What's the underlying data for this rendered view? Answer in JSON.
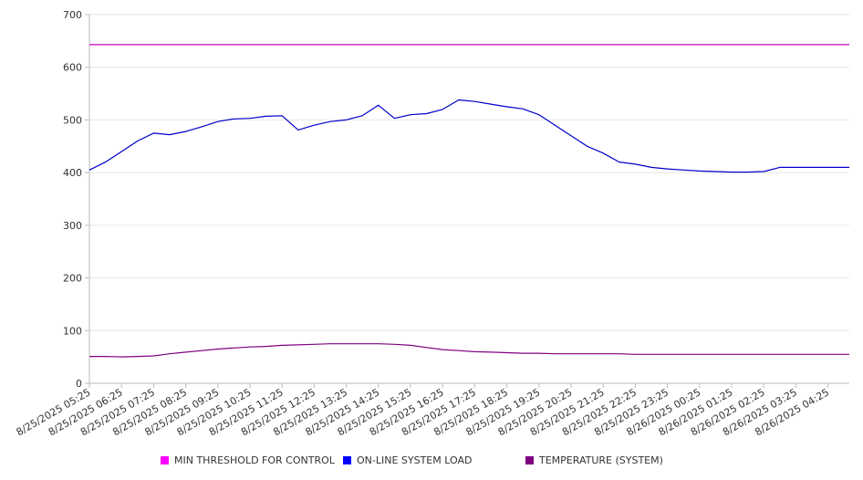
{
  "chart_data": {
    "type": "line",
    "title": "",
    "xlabel": "",
    "ylabel": "",
    "ylim": [
      0,
      700
    ],
    "yticks": [
      0,
      100,
      200,
      300,
      400,
      500,
      600,
      700
    ],
    "xticks": [
      "8/25/2025 05:25",
      "8/25/2025 06:25",
      "8/25/2025 07:25",
      "8/25/2025 08:25",
      "8/25/2025 09:25",
      "8/25/2025 10:25",
      "8/25/2025 11:25",
      "8/25/2025 12:25",
      "8/25/2025 13:25",
      "8/25/2025 14:25",
      "8/25/2025 15:25",
      "8/25/2025 16:25",
      "8/25/2025 17:25",
      "8/25/2025 18:25",
      "8/25/2025 19:25",
      "8/25/2025 20:25",
      "8/25/2025 21:25",
      "8/25/2025 22:25",
      "8/25/2025 23:25",
      "8/26/2025 00:25",
      "8/26/2025 01:25",
      "8/26/2025 02:25",
      "8/26/2025 03:25",
      "8/26/2025 04:25"
    ],
    "grid": true,
    "legend_position": "bottom",
    "x": [
      "8/25/2025 05:25",
      "8/25/2025 05:55",
      "8/25/2025 06:25",
      "8/25/2025 06:55",
      "8/25/2025 07:25",
      "8/25/2025 07:55",
      "8/25/2025 08:25",
      "8/25/2025 08:55",
      "8/25/2025 09:25",
      "8/25/2025 09:55",
      "8/25/2025 10:25",
      "8/25/2025 10:55",
      "8/25/2025 11:25",
      "8/25/2025 11:55",
      "8/25/2025 12:25",
      "8/25/2025 12:55",
      "8/25/2025 13:25",
      "8/25/2025 13:55",
      "8/25/2025 14:25",
      "8/25/2025 14:55",
      "8/25/2025 15:25",
      "8/25/2025 15:55",
      "8/25/2025 16:25",
      "8/25/2025 16:55",
      "8/25/2025 17:25",
      "8/25/2025 17:55",
      "8/25/2025 18:25",
      "8/25/2025 18:55",
      "8/25/2025 19:25",
      "8/25/2025 19:55",
      "8/25/2025 20:25",
      "8/25/2025 20:55",
      "8/25/2025 21:25",
      "8/25/2025 21:55",
      "8/25/2025 22:25",
      "8/25/2025 22:55",
      "8/25/2025 23:25",
      "8/25/2025 23:55",
      "8/26/2025 00:25",
      "8/26/2025 00:55",
      "8/26/2025 01:25",
      "8/26/2025 01:55",
      "8/26/2025 02:25",
      "8/26/2025 02:55",
      "8/26/2025 03:25",
      "8/26/2025 03:55",
      "8/26/2025 04:25",
      "8/26/2025 04:55",
      "8/26/2025 05:15"
    ],
    "series": [
      {
        "name": "MIN THRESHOLD FOR CONTROL",
        "color": "#c000c0",
        "values": [
          643,
          643,
          643,
          643,
          643,
          643,
          643,
          643,
          643,
          643,
          643,
          643,
          643,
          643,
          643,
          643,
          643,
          643,
          643,
          643,
          643,
          643,
          643,
          643,
          643,
          643,
          643,
          643,
          643,
          643,
          643,
          643,
          643,
          643,
          643,
          643,
          643,
          643,
          643,
          643,
          643,
          643,
          643,
          643,
          643,
          643,
          643,
          643,
          643
        ]
      },
      {
        "name": "ON-LINE SYSTEM LOAD",
        "color": "#0000cc",
        "values": [
          405,
          420,
          440,
          460,
          475,
          472,
          478,
          487,
          497,
          502,
          503,
          507,
          508,
          481,
          490,
          497,
          500,
          508,
          528,
          503,
          510,
          512,
          520,
          538,
          535,
          530,
          525,
          521,
          510,
          490,
          470,
          450,
          437,
          420,
          416,
          410,
          407,
          405,
          403,
          402,
          401,
          401,
          402,
          410,
          410,
          410,
          410,
          410,
          410
        ]
      },
      {
        "name": "TEMPERATURE (SYSTEM)",
        "color": "#800080",
        "values": [
          51,
          51,
          50,
          51,
          52,
          56,
          59,
          62,
          65,
          67,
          69,
          70,
          72,
          73,
          74,
          75,
          75,
          75,
          75,
          74,
          72,
          68,
          64,
          62,
          60,
          59,
          58,
          57,
          57,
          56,
          56,
          56,
          56,
          56,
          55,
          55,
          55,
          55,
          55,
          55,
          55,
          55,
          55,
          55,
          55,
          55,
          55,
          55,
          55
        ]
      }
    ]
  }
}
